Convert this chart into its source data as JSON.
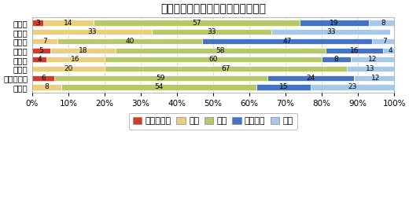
{
  "title": "経営者の供給意欲について（割合）",
  "categories": [
    "全　国",
    "北海道",
    "東　北",
    "関　東",
    "中　部",
    "近　畿",
    "中国・四国",
    "九　州"
  ],
  "series": {
    "かなり強い": [
      3,
      0,
      0,
      5,
      4,
      0,
      6,
      0
    ],
    "強い": [
      14,
      33,
      7,
      18,
      16,
      20,
      0,
      8
    ],
    "普通": [
      57,
      33,
      40,
      58,
      60,
      67,
      59,
      54
    ],
    "やや弱い": [
      19,
      0,
      47,
      16,
      8,
      0,
      24,
      15
    ],
    "弱い": [
      8,
      33,
      7,
      4,
      12,
      13,
      12,
      23
    ]
  },
  "colors": {
    "かなり強い": "#d13b2a",
    "強い": "#e8d080",
    "普通": "#b5c96a",
    "やや弱い": "#4472c4",
    "弱い": "#a8c8e8"
  },
  "legend_order": [
    "かなり強い",
    "強い",
    "普通",
    "やや弱い",
    "弱い"
  ],
  "xlim": [
    0,
    100
  ],
  "background_color": "#ffffff",
  "bar_height": 0.62,
  "fontsize_title": 10,
  "fontsize_tick": 7.5,
  "fontsize_bar": 6.5,
  "fontsize_legend": 8
}
